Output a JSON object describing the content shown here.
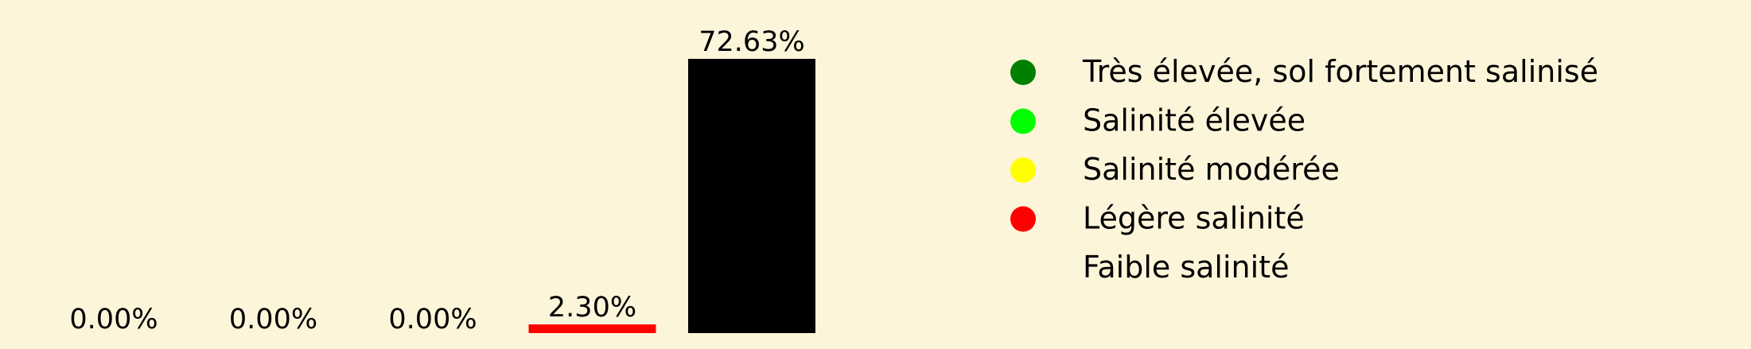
{
  "chart_data": {
    "type": "bar",
    "categories": [
      "Très élevée, sol fortement salinisé",
      "Salinité élevée",
      "Salinité modérée",
      "Légère salinité",
      "Faible salinité"
    ],
    "values": [
      0.0,
      0.0,
      0.0,
      2.3,
      72.63
    ],
    "value_labels": [
      "0.00%",
      "0.00%",
      "0.00%",
      "2.30%",
      "72.63%"
    ],
    "colors": [
      "#008000",
      "#00ff00",
      "#ffff00",
      "#ff0000",
      "#000000"
    ],
    "ylim": [
      0,
      80
    ],
    "grid": false,
    "legend": {
      "placement": "right",
      "items": [
        {
          "label": "Très élevée, sol fortement salinisé",
          "color": "#008000"
        },
        {
          "label": "Salinité élevée",
          "color": "#00ff00"
        },
        {
          "label": "Salinité modérée",
          "color": "#ffff00"
        },
        {
          "label": "Légère salinité",
          "color": "#ff0000"
        },
        {
          "label": "Faible salinité",
          "color": "#fdf5da"
        }
      ]
    }
  }
}
